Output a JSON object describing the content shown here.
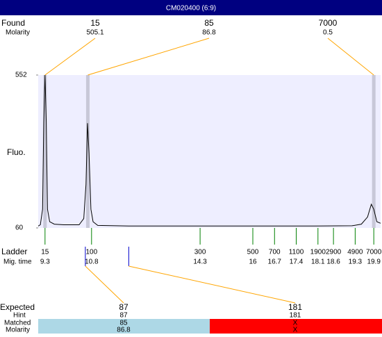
{
  "header": {
    "title": "CM020400 (6:9)"
  },
  "found": {
    "label": "Found",
    "molarity_label": "Molarity",
    "peaks": [
      {
        "size": 15,
        "molarity": 505.1,
        "time": 9.3
      },
      {
        "size": 85,
        "molarity": 86.8,
        "time": 10.68
      },
      {
        "size": 7000,
        "molarity": 0.5,
        "time": 19.9
      }
    ]
  },
  "plot": {
    "y_label": "Fluo.",
    "ylim": [
      60,
      552
    ],
    "yticks": [
      552,
      60
    ],
    "xlim": [
      9.08,
      20.12
    ],
    "background": "#eeeeff",
    "line_color": "#000000",
    "x": [
      9.08,
      9.15,
      9.22,
      9.26,
      9.3,
      9.34,
      9.38,
      9.45,
      9.6,
      9.9,
      10.4,
      10.55,
      10.62,
      10.67,
      10.72,
      10.78,
      10.85,
      11.0,
      12.0,
      14.0,
      16.0,
      18.0,
      19.2,
      19.5,
      19.7,
      19.82,
      19.9,
      20.0,
      20.12
    ],
    "values": [
      66,
      70,
      120,
      400,
      552,
      400,
      120,
      80,
      72,
      70,
      70,
      90,
      200,
      397,
      300,
      120,
      80,
      68,
      66,
      66,
      66,
      66,
      67,
      72,
      95,
      136,
      120,
      80,
      75
    ]
  },
  "ladder": {
    "label": "Ladder",
    "time_label": "Mig. time",
    "color": "#008000",
    "sizes": [
      15,
      100,
      300,
      500,
      700,
      1100,
      1900,
      2900,
      4900,
      7000
    ],
    "times": [
      9.3,
      10.8,
      14.3,
      16,
      16.7,
      17.4,
      18.1,
      18.6,
      19.3,
      19.9
    ]
  },
  "expected": {
    "label": "Expected",
    "hint_label": "Hint",
    "matched_label": "Matched",
    "molarity_label": "Molarity",
    "items": [
      {
        "size": 87,
        "hint": 87,
        "matched": 85,
        "molarity": 86.8,
        "time": 10.6,
        "color": "#add8e6"
      },
      {
        "size": 181,
        "hint": 181,
        "matched": "X",
        "molarity": "X",
        "time": 12.0,
        "color": "#ff0000"
      }
    ]
  }
}
